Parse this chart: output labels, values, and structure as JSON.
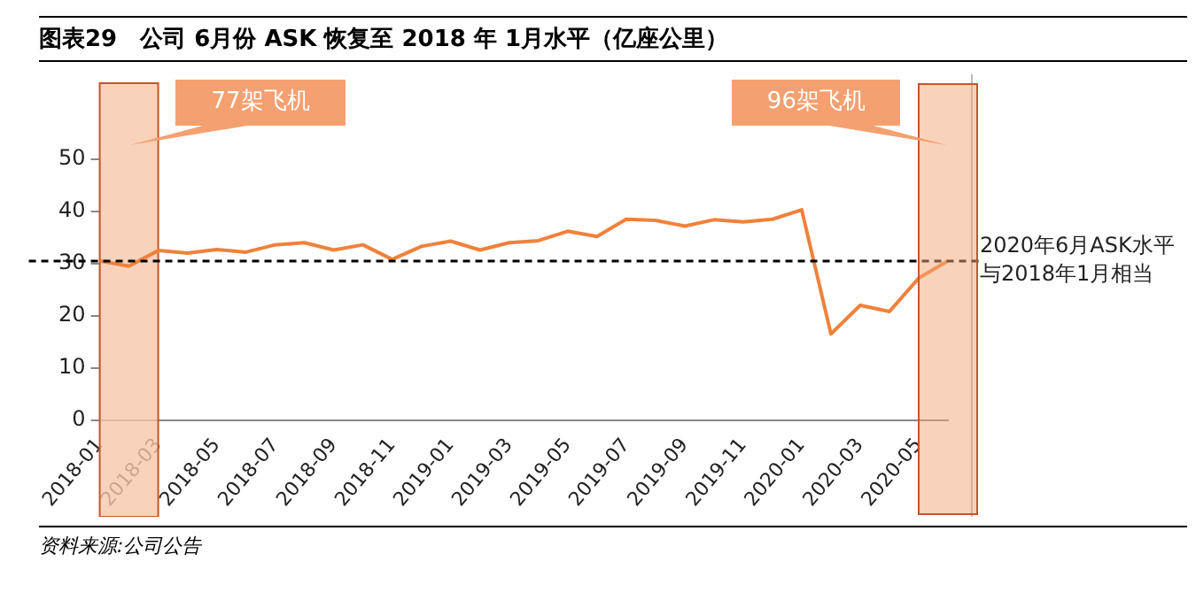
{
  "chart_data": {
    "type": "line",
    "title": "图表29　公司 6月份 ASK 恢复至 2018 年 1月水平（亿座公里）",
    "categories": [
      "2018-01",
      null,
      "2018-03",
      null,
      "2018-05",
      null,
      "2018-07",
      null,
      "2018-09",
      null,
      "2018-11",
      null,
      "2019-01",
      null,
      "2019-03",
      null,
      "2019-05",
      null,
      "2019-07",
      null,
      "2019-09",
      null,
      "2019-11",
      null,
      "2020-01",
      null,
      "2020-03",
      null,
      "2020-05",
      null
    ],
    "series": [
      {
        "color": "#f0813a",
        "values": [
          30.5,
          29.5,
          32.5,
          32,
          32.7,
          32.2,
          33.6,
          34,
          32.6,
          33.6,
          30.8,
          33.3,
          34.3,
          32.6,
          34,
          34.4,
          36.2,
          35.2,
          38.5,
          38.3,
          37.2,
          38.4,
          38,
          38.5,
          40.3,
          16.5,
          22,
          20.8,
          27.2,
          30.5
        ]
      }
    ],
    "ylim": [
      0,
      50
    ],
    "yticks": [
      0,
      10,
      20,
      30,
      40,
      50
    ],
    "grid": false,
    "legend": false,
    "marker": "none",
    "line_style": "solid",
    "ref_lines": [
      {
        "axis": "y",
        "value": 30.5,
        "label": "2020年6月ASK水平与2018年1月相当",
        "color": "#000000",
        "line_style": "dashed"
      }
    ],
    "bands": [
      {
        "axis": "x",
        "from": "2018-01",
        "to": "2018-03",
        "label": "77架飞机",
        "color": "#f7c7ab"
      }
    ],
    "annotations": [
      "资料来源:公司公告",
      "96架飞机"
    ]
  }
}
